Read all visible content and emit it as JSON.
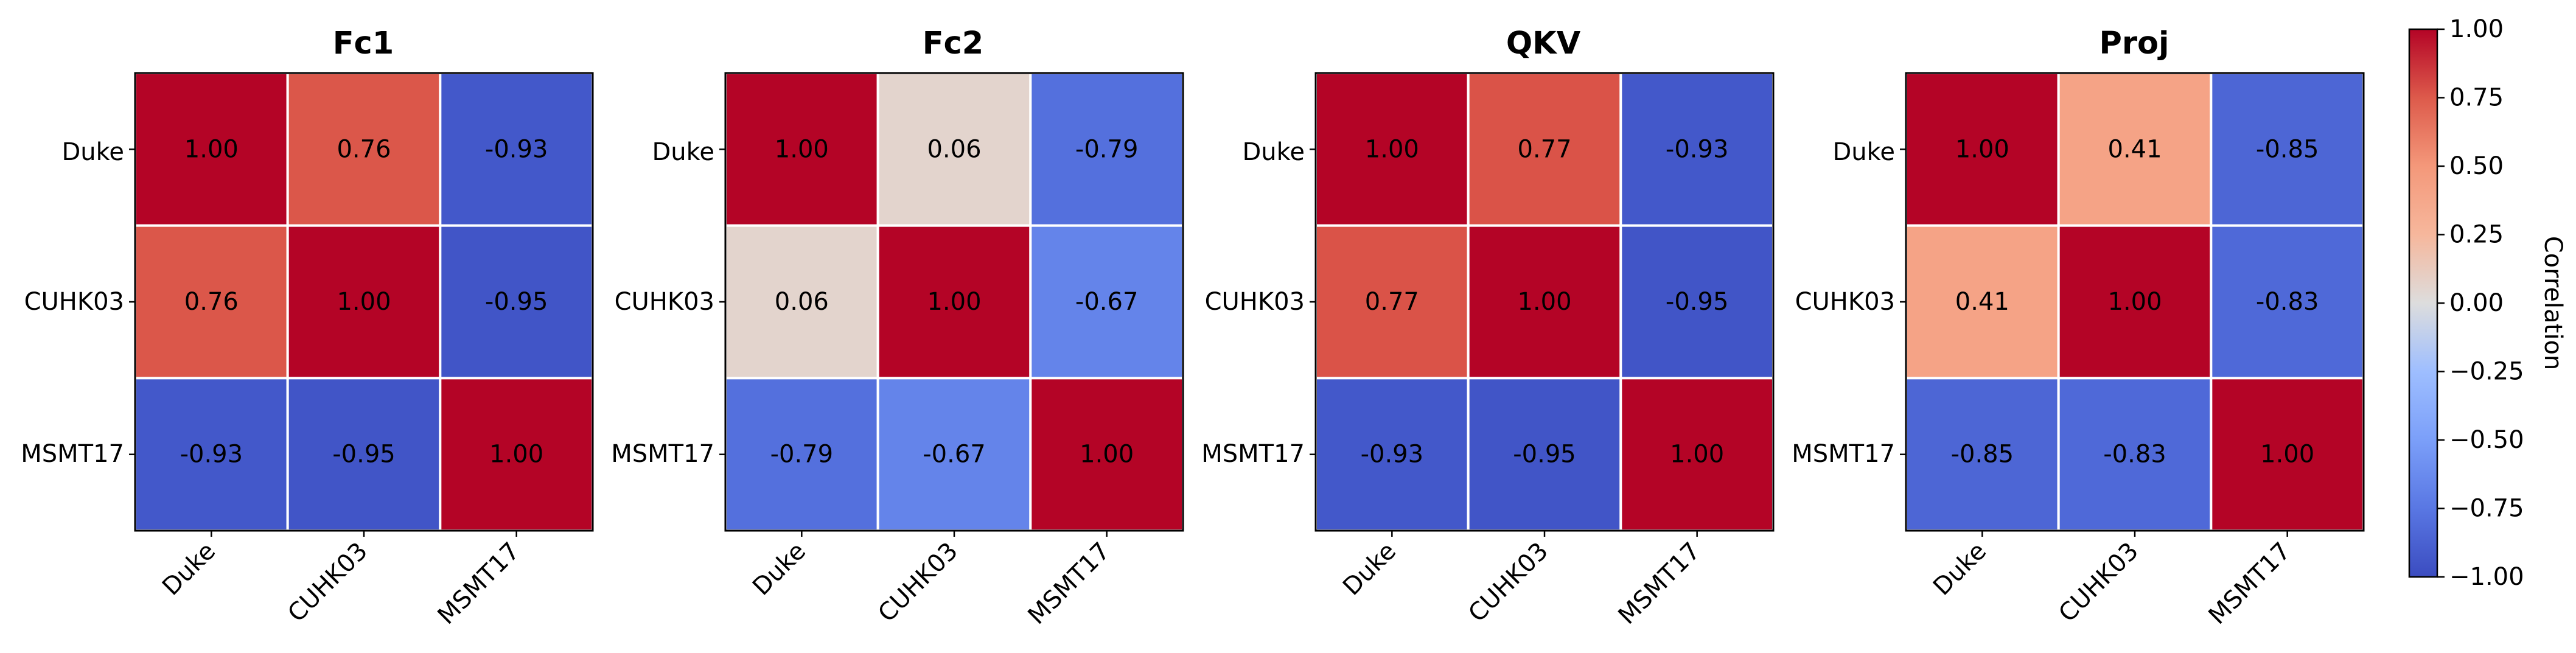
{
  "chart_data": {
    "type": "heatmap",
    "panels": [
      {
        "title": "Fc1",
        "categories": [
          "Duke",
          "CUHK03",
          "MSMT17"
        ],
        "values": [
          [
            1.0,
            0.76,
            -0.93
          ],
          [
            0.76,
            1.0,
            -0.95
          ],
          [
            -0.93,
            -0.95,
            1.0
          ]
        ],
        "labels": [
          [
            "1.00",
            "0.76",
            "-0.93"
          ],
          [
            "0.76",
            "1.00",
            "-0.95"
          ],
          [
            "-0.93",
            "-0.95",
            "1.00"
          ]
        ]
      },
      {
        "title": "Fc2",
        "categories": [
          "Duke",
          "CUHK03",
          "MSMT17"
        ],
        "values": [
          [
            1.0,
            0.06,
            -0.79
          ],
          [
            0.06,
            1.0,
            -0.67
          ],
          [
            -0.79,
            -0.67,
            1.0
          ]
        ],
        "labels": [
          [
            "1.00",
            "0.06",
            "-0.79"
          ],
          [
            "0.06",
            "1.00",
            "-0.67"
          ],
          [
            "-0.79",
            "-0.67",
            "1.00"
          ]
        ]
      },
      {
        "title": "QKV",
        "categories": [
          "Duke",
          "CUHK03",
          "MSMT17"
        ],
        "values": [
          [
            1.0,
            0.77,
            -0.93
          ],
          [
            0.77,
            1.0,
            -0.95
          ],
          [
            -0.93,
            -0.95,
            1.0
          ]
        ],
        "labels": [
          [
            "1.00",
            "0.77",
            "-0.93"
          ],
          [
            "0.77",
            "1.00",
            "-0.95"
          ],
          [
            "-0.93",
            "-0.95",
            "1.00"
          ]
        ]
      },
      {
        "title": "Proj",
        "categories": [
          "Duke",
          "CUHK03",
          "MSMT17"
        ],
        "values": [
          [
            1.0,
            0.41,
            -0.85
          ],
          [
            0.41,
            1.0,
            -0.83
          ],
          [
            -0.85,
            -0.83,
            1.0
          ]
        ],
        "labels": [
          [
            "1.00",
            "0.41",
            "-0.85"
          ],
          [
            "0.41",
            "1.00",
            "-0.83"
          ],
          [
            "-0.85",
            "-0.83",
            "1.00"
          ]
        ]
      }
    ],
    "colorbar": {
      "label": "Correlation",
      "colormap": "coolwarm",
      "range": [
        -1.0,
        1.0
      ],
      "ticks": [
        1.0,
        0.75,
        0.5,
        0.25,
        0.0,
        -0.25,
        -0.5,
        -0.75,
        -1.0
      ],
      "tick_labels": [
        "1.00",
        "0.75",
        "0.50",
        "0.25",
        "0.00",
        "−0.25",
        "−0.50",
        "−0.75",
        "−1.00"
      ]
    }
  }
}
